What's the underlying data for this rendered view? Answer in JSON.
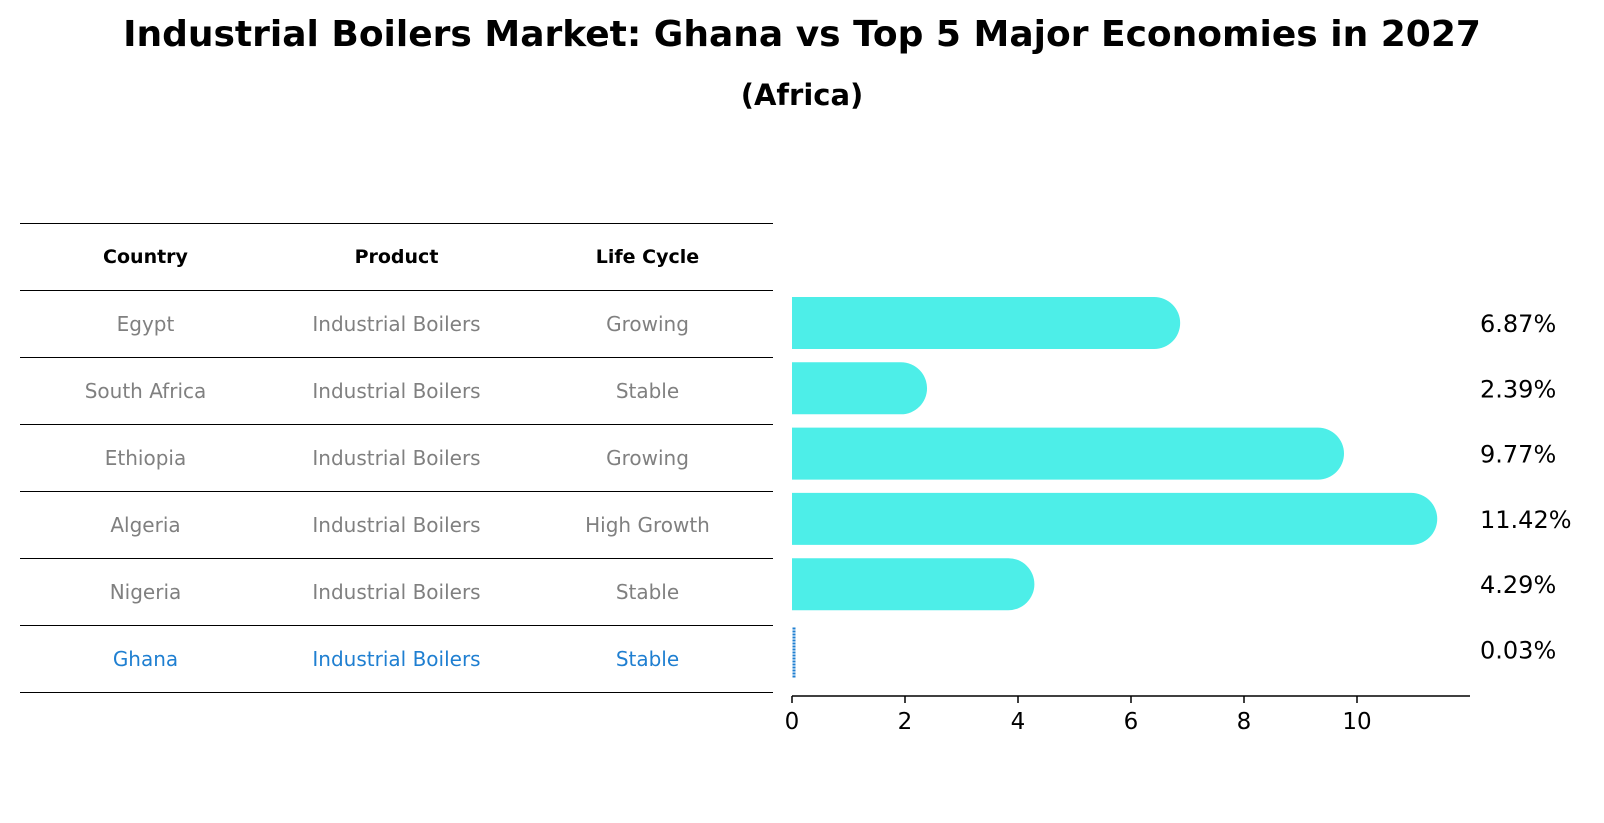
{
  "title": "Industrial Boilers Market: Ghana vs Top 5 Major Economies in 2027",
  "subtitle": "(Africa)",
  "table": {
    "headers": [
      "Country",
      "Product",
      "Life Cycle"
    ],
    "rows": [
      [
        "Egypt",
        "Industrial Boilers",
        "Growing"
      ],
      [
        "South Africa",
        "Industrial Boilers",
        "Stable"
      ],
      [
        "Ethiopia",
        "Industrial Boilers",
        "Growing"
      ],
      [
        "Algeria",
        "Industrial Boilers",
        "High Growth"
      ],
      [
        "Nigeria",
        "Industrial Boilers",
        "Stable"
      ],
      [
        "Ghana",
        "Industrial Boilers",
        "Stable"
      ]
    ],
    "highlight_row": 5
  },
  "chart_data": {
    "type": "bar",
    "orientation": "horizontal",
    "categories": [
      "Egypt",
      "South Africa",
      "Ethiopia",
      "Algeria",
      "Nigeria",
      "Ghana"
    ],
    "values": [
      6.87,
      2.39,
      9.77,
      11.42,
      4.29,
      0.03
    ],
    "value_labels": [
      "6.87%",
      "2.39%",
      "9.77%",
      "11.42%",
      "4.29%",
      "0.03%"
    ],
    "xticks": [
      0,
      2,
      4,
      6,
      8,
      10
    ],
    "xlim": [
      0,
      12
    ],
    "bar_color": "#4deee8",
    "highlight_color": "#1f7fd1",
    "grid": false
  }
}
